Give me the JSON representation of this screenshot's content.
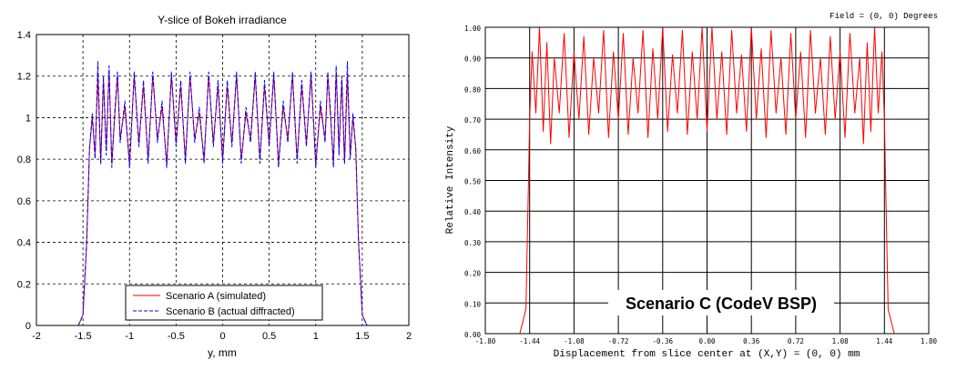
{
  "chart_data": [
    {
      "type": "line",
      "title": "Y-slice of Bokeh irradiance",
      "xlabel": "y, mm",
      "ylabel": "",
      "xlim": [
        -2,
        2
      ],
      "ylim": [
        0,
        1.4
      ],
      "xticks": [
        "-2",
        "-1.5",
        "-1",
        "-0.5",
        "0",
        "0.5",
        "1",
        "1.5",
        "2"
      ],
      "yticks": [
        "0",
        "0.2",
        "0.4",
        "0.6",
        "0.8",
        "1",
        "1.2",
        "1.4"
      ],
      "grid": true,
      "legend_position": "bottom-center",
      "series": [
        {
          "name": "Scenario A (simulated)",
          "color": "#ff0000",
          "style": "solid",
          "x": [
            -1.7,
            -1.55,
            -1.5,
            -1.46,
            -1.43,
            -1.4,
            -1.37,
            -1.34,
            -1.31,
            -1.28,
            -1.25,
            -1.22,
            -1.19,
            -1.16,
            -1.13,
            -1.1,
            -1.05,
            -1.0,
            -0.95,
            -0.9,
            -0.85,
            -0.8,
            -0.75,
            -0.7,
            -0.65,
            -0.6,
            -0.55,
            -0.5,
            -0.45,
            -0.4,
            -0.35,
            -0.3,
            -0.25,
            -0.2,
            -0.15,
            -0.1,
            -0.05,
            0.0,
            0.05,
            0.1,
            0.15,
            0.2,
            0.25,
            0.3,
            0.35,
            0.4,
            0.45,
            0.5,
            0.55,
            0.6,
            0.65,
            0.7,
            0.75,
            0.8,
            0.85,
            0.9,
            0.95,
            1.0,
            1.05,
            1.1,
            1.13,
            1.16,
            1.19,
            1.22,
            1.25,
            1.28,
            1.31,
            1.34,
            1.37,
            1.4,
            1.43,
            1.46,
            1.5,
            1.55,
            1.7
          ],
          "y": [
            0.0,
            0.0,
            0.05,
            0.4,
            0.85,
            1.0,
            0.82,
            1.2,
            0.78,
            1.18,
            0.85,
            1.22,
            0.78,
            1.0,
            1.2,
            0.9,
            1.05,
            0.78,
            1.2,
            0.88,
            1.15,
            0.8,
            1.2,
            0.9,
            1.05,
            0.78,
            1.2,
            0.88,
            1.15,
            0.8,
            1.2,
            0.9,
            1.02,
            0.8,
            1.2,
            0.88,
            1.15,
            0.8,
            1.15,
            0.88,
            1.2,
            0.8,
            1.02,
            0.9,
            1.2,
            0.8,
            1.15,
            0.88,
            1.2,
            0.78,
            1.05,
            0.9,
            1.2,
            0.8,
            1.15,
            0.88,
            1.2,
            0.78,
            1.05,
            0.9,
            1.2,
            1.0,
            0.78,
            1.22,
            0.85,
            1.18,
            0.78,
            1.2,
            0.82,
            1.0,
            0.85,
            0.4,
            0.05,
            0.0,
            0.0
          ]
        },
        {
          "name": "Scenario B (actual diffracted)",
          "color": "#0000ff",
          "style": "dashed",
          "x": [
            -1.7,
            -1.55,
            -1.5,
            -1.46,
            -1.43,
            -1.4,
            -1.37,
            -1.34,
            -1.31,
            -1.28,
            -1.25,
            -1.22,
            -1.19,
            -1.16,
            -1.13,
            -1.1,
            -1.05,
            -1.0,
            -0.95,
            -0.9,
            -0.85,
            -0.8,
            -0.75,
            -0.7,
            -0.65,
            -0.6,
            -0.55,
            -0.5,
            -0.45,
            -0.4,
            -0.35,
            -0.3,
            -0.25,
            -0.2,
            -0.15,
            -0.1,
            -0.05,
            0.0,
            0.05,
            0.1,
            0.15,
            0.2,
            0.25,
            0.3,
            0.35,
            0.4,
            0.45,
            0.5,
            0.55,
            0.6,
            0.65,
            0.7,
            0.75,
            0.8,
            0.85,
            0.9,
            0.95,
            1.0,
            1.05,
            1.1,
            1.13,
            1.16,
            1.19,
            1.22,
            1.25,
            1.28,
            1.31,
            1.34,
            1.37,
            1.4,
            1.43,
            1.46,
            1.5,
            1.55,
            1.7
          ],
          "y": [
            0.0,
            0.0,
            0.05,
            0.4,
            0.85,
            1.02,
            0.8,
            1.27,
            0.78,
            1.2,
            0.82,
            1.25,
            0.76,
            1.02,
            1.22,
            0.88,
            1.08,
            0.76,
            1.22,
            0.86,
            1.18,
            0.78,
            1.22,
            0.88,
            1.08,
            0.76,
            1.22,
            0.86,
            1.18,
            0.78,
            1.22,
            0.88,
            1.05,
            0.78,
            1.22,
            0.86,
            1.18,
            0.78,
            1.18,
            0.86,
            1.22,
            0.78,
            1.05,
            0.88,
            1.22,
            0.78,
            1.18,
            0.86,
            1.22,
            0.76,
            1.08,
            0.88,
            1.22,
            0.78,
            1.18,
            0.86,
            1.22,
            0.76,
            1.08,
            0.88,
            1.22,
            1.02,
            0.76,
            1.25,
            0.82,
            1.2,
            0.78,
            1.27,
            0.8,
            1.02,
            0.85,
            0.4,
            0.05,
            0.0,
            0.0
          ]
        }
      ]
    },
    {
      "type": "line",
      "title": "",
      "xlabel": "Displacement from slice center at (X,Y) = (0, 0) mm",
      "ylabel": "Relative Intensity",
      "xlim": [
        -1.8,
        1.8
      ],
      "ylim": [
        0,
        1.0
      ],
      "xticks": [
        "-1.80",
        "-1.44",
        "-1.08",
        "-0.72",
        "-0.36",
        "0.00",
        "0.36",
        "0.72",
        "1.08",
        "1.44",
        "1.80"
      ],
      "yticks": [
        "0.00",
        "0.10",
        "0.20",
        "0.30",
        "0.40",
        "0.50",
        "0.60",
        "0.70",
        "0.80",
        "0.90",
        "1.00"
      ],
      "grid": true,
      "corner_note": "Field = (0, 0) Degrees",
      "annotation": "Scenario C (CodeV BSP)",
      "series": [
        {
          "name": "",
          "color": "#ff0000",
          "style": "solid",
          "x": [
            -1.8,
            -1.52,
            -1.47,
            -1.45,
            -1.44,
            -1.42,
            -1.39,
            -1.36,
            -1.33,
            -1.3,
            -1.27,
            -1.24,
            -1.2,
            -1.16,
            -1.12,
            -1.08,
            -1.04,
            -1.0,
            -0.96,
            -0.92,
            -0.88,
            -0.84,
            -0.8,
            -0.76,
            -0.72,
            -0.68,
            -0.64,
            -0.6,
            -0.56,
            -0.52,
            -0.48,
            -0.44,
            -0.4,
            -0.36,
            -0.32,
            -0.28,
            -0.24,
            -0.2,
            -0.16,
            -0.12,
            -0.08,
            -0.04,
            0.0,
            0.04,
            0.08,
            0.12,
            0.16,
            0.2,
            0.24,
            0.28,
            0.32,
            0.36,
            0.4,
            0.44,
            0.48,
            0.52,
            0.56,
            0.6,
            0.64,
            0.68,
            0.72,
            0.76,
            0.8,
            0.84,
            0.88,
            0.92,
            0.96,
            1.0,
            1.04,
            1.08,
            1.12,
            1.16,
            1.2,
            1.24,
            1.27,
            1.3,
            1.33,
            1.36,
            1.39,
            1.42,
            1.44,
            1.45,
            1.47,
            1.52,
            1.8
          ],
          "y": [
            0.0,
            0.0,
            0.08,
            0.48,
            0.7,
            0.92,
            0.72,
            1.0,
            0.66,
            0.95,
            0.62,
            0.9,
            0.72,
            0.98,
            0.64,
            0.92,
            0.7,
            0.97,
            0.65,
            0.9,
            0.72,
            0.99,
            0.64,
            0.92,
            0.7,
            0.98,
            0.65,
            0.9,
            0.72,
            0.99,
            0.64,
            0.93,
            0.7,
            1.0,
            0.66,
            0.91,
            0.72,
            0.99,
            0.65,
            0.92,
            0.7,
            1.0,
            0.66,
            1.0,
            0.7,
            0.92,
            0.65,
            0.99,
            0.72,
            0.91,
            0.66,
            1.0,
            0.7,
            0.93,
            0.64,
            0.99,
            0.72,
            0.9,
            0.65,
            0.98,
            0.7,
            0.92,
            0.64,
            0.99,
            0.72,
            0.9,
            0.65,
            0.97,
            0.7,
            0.92,
            0.64,
            0.98,
            0.72,
            0.9,
            0.62,
            0.95,
            0.66,
            1.0,
            0.72,
            0.92,
            0.7,
            0.48,
            0.08,
            0.0,
            0.0
          ]
        }
      ]
    }
  ]
}
